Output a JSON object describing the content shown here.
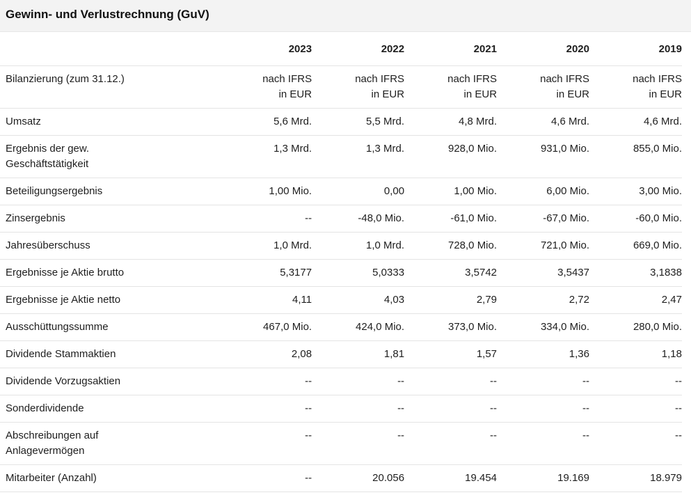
{
  "title": "Gewinn- und Verlustrechnung (GuV)",
  "years": [
    "2023",
    "2022",
    "2021",
    "2020",
    "2019"
  ],
  "rows": [
    {
      "label": "Bilanzierung (zum 31.12.)",
      "values": [
        "nach IFRS\nin EUR",
        "nach IFRS\nin EUR",
        "nach IFRS\nin EUR",
        "nach IFRS\nin EUR",
        "nach IFRS\nin EUR"
      ]
    },
    {
      "label": "Umsatz",
      "values": [
        "5,6 Mrd.",
        "5,5 Mrd.",
        "4,8 Mrd.",
        "4,6 Mrd.",
        "4,6 Mrd."
      ]
    },
    {
      "label": "Ergebnis der gew.\nGeschäftstätigkeit",
      "values": [
        "1,3 Mrd.",
        "1,3 Mrd.",
        "928,0 Mio.",
        "931,0 Mio.",
        "855,0 Mio."
      ]
    },
    {
      "label": "Beteiligungsergebnis",
      "values": [
        "1,00 Mio.",
        "0,00",
        "1,00 Mio.",
        "6,00 Mio.",
        "3,00 Mio."
      ]
    },
    {
      "label": "Zinsergebnis",
      "values": [
        "--",
        "-48,0 Mio.",
        "-61,0 Mio.",
        "-67,0 Mio.",
        "-60,0 Mio."
      ]
    },
    {
      "label": "Jahresüberschuss",
      "values": [
        "1,0 Mrd.",
        "1,0 Mrd.",
        "728,0 Mio.",
        "721,0 Mio.",
        "669,0 Mio."
      ]
    },
    {
      "label": "Ergebnisse je Aktie brutto",
      "values": [
        "5,3177",
        "5,0333",
        "3,5742",
        "3,5437",
        "3,1838"
      ]
    },
    {
      "label": "Ergebnisse je Aktie netto",
      "values": [
        "4,11",
        "4,03",
        "2,79",
        "2,72",
        "2,47"
      ]
    },
    {
      "label": "Ausschüttungssumme",
      "values": [
        "467,0 Mio.",
        "424,0 Mio.",
        "373,0 Mio.",
        "334,0 Mio.",
        "280,0 Mio."
      ]
    },
    {
      "label": "Dividende Stammaktien",
      "values": [
        "2,08",
        "1,81",
        "1,57",
        "1,36",
        "1,18"
      ]
    },
    {
      "label": "Dividende Vorzugsaktien",
      "values": [
        "--",
        "--",
        "--",
        "--",
        "--"
      ]
    },
    {
      "label": "Sonderdividende",
      "values": [
        "--",
        "--",
        "--",
        "--",
        "--"
      ]
    },
    {
      "label": "Abschreibungen auf\nAnlagevermögen",
      "values": [
        "--",
        "--",
        "--",
        "--",
        "--"
      ]
    },
    {
      "label": "Mitarbeiter (Anzahl)",
      "values": [
        "--",
        "20.056",
        "19.454",
        "19.169",
        "18.979"
      ]
    }
  ]
}
